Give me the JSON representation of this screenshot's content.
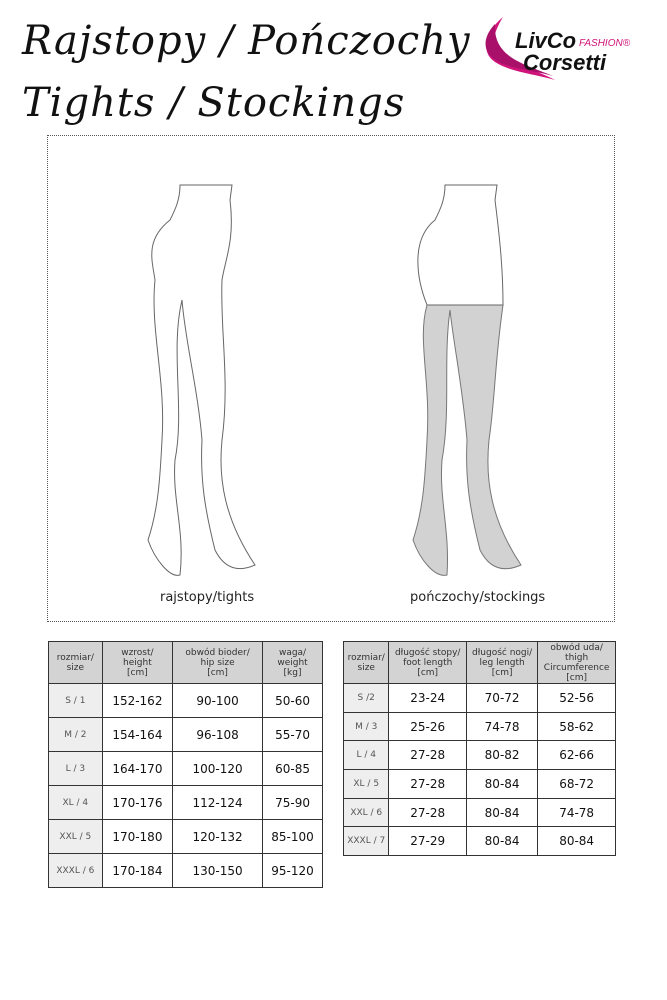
{
  "title": {
    "line1": "Rajstopy / Pończochy",
    "line2": "Tights / Stockings"
  },
  "logo": {
    "brand_line1": "LivCo",
    "brand_tag": "FASHION®",
    "brand_line2": "Corsetti",
    "accent": "#d0147a"
  },
  "figures": {
    "tights_label": "rajstopy/tights",
    "stockings_label": "pończochy/stockings"
  },
  "tights_table": {
    "headers": [
      "rozmiar/\nsize",
      "wzrost/\nheight\n[cm]",
      "obwód bioder/\nhip size\n[cm]",
      "waga/\nweight\n[kg]"
    ],
    "rows": [
      [
        "S / 1",
        "152-162",
        "90-100",
        "50-60"
      ],
      [
        "M / 2",
        "154-164",
        "96-108",
        "55-70"
      ],
      [
        "L / 3",
        "164-170",
        "100-120",
        "60-85"
      ],
      [
        "XL / 4",
        "170-176",
        "112-124",
        "75-90"
      ],
      [
        "XXL / 5",
        "170-180",
        "120-132",
        "85-100"
      ],
      [
        "XXXL / 6",
        "170-184",
        "130-150",
        "95-120"
      ]
    ]
  },
  "stockings_table": {
    "headers": [
      "rozmiar/\nsize",
      "długość stopy/\nfoot length\n[cm]",
      "długość nogi/\nleg length\n[cm]",
      "obwód uda/\nthigh\nCircumference\n[cm]"
    ],
    "rows": [
      [
        "S /2",
        "23-24",
        "70-72",
        "52-56"
      ],
      [
        "M / 3",
        "25-26",
        "74-78",
        "58-62"
      ],
      [
        "L / 4",
        "27-28",
        "80-82",
        "62-66"
      ],
      [
        "XL / 5",
        "27-28",
        "80-84",
        "68-72"
      ],
      [
        "XXL / 6",
        "27-28",
        "80-84",
        "74-78"
      ],
      [
        "XXXL / 7",
        "27-29",
        "80-84",
        "80-84"
      ]
    ]
  }
}
